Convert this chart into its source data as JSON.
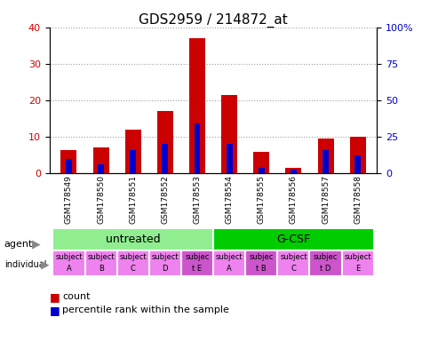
{
  "title": "GDS2959 / 214872_at",
  "samples": [
    "GSM178549",
    "GSM178550",
    "GSM178551",
    "GSM178552",
    "GSM178553",
    "GSM178554",
    "GSM178555",
    "GSM178556",
    "GSM178557",
    "GSM178558"
  ],
  "count_values": [
    6.5,
    7.0,
    12.0,
    17.0,
    37.0,
    21.5,
    6.0,
    1.5,
    9.5,
    10.0
  ],
  "percentile_values": [
    10.0,
    6.0,
    16.0,
    20.0,
    34.0,
    20.0,
    4.0,
    2.5,
    16.0,
    12.5
  ],
  "ylim_left": [
    0,
    40
  ],
  "ylim_right": [
    0,
    100
  ],
  "yticks_left": [
    0,
    10,
    20,
    30,
    40
  ],
  "yticks_right": [
    0,
    25,
    50,
    75,
    100
  ],
  "ytick_labels_right": [
    "0",
    "25",
    "50",
    "75",
    "100%"
  ],
  "bar_color_count": "#cc0000",
  "bar_color_percentile": "#0000cc",
  "agent_groups": [
    {
      "label": "untreated",
      "start": 0,
      "end": 5,
      "color": "#90ee90"
    },
    {
      "label": "G-CSF",
      "start": 5,
      "end": 10,
      "color": "#00cc00"
    }
  ],
  "individual_labels_line1": [
    "subject",
    "subject",
    "subject",
    "subject",
    "subjec",
    "subject",
    "subjec",
    "subject",
    "subjec",
    "subject"
  ],
  "individual_labels_line2": [
    "A",
    "B",
    "C",
    "D",
    "t E",
    "A",
    "t B",
    "C",
    "t D",
    "E"
  ],
  "individual_colors": [
    "#ee82ee",
    "#ee82ee",
    "#ee82ee",
    "#ee82ee",
    "#cc55cc",
    "#ee82ee",
    "#cc55cc",
    "#ee82ee",
    "#cc55cc",
    "#ee82ee"
  ],
  "bar_width": 0.5,
  "tick_label_area_color": "#d3d3d3",
  "agent_label_fontsize": 9,
  "individual_label_fontsize": 6,
  "title_fontsize": 11
}
